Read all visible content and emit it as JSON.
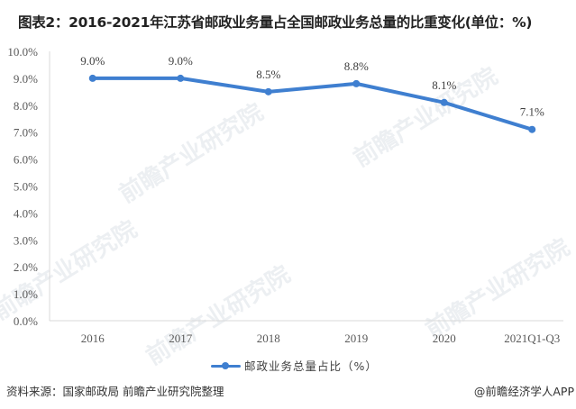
{
  "title": "图表2：2016-2021年江苏省邮政业务量占全国邮政业务总量的比重变化(单位：%)",
  "chart_data": {
    "type": "line",
    "title": "图表2：2016-2021年江苏省邮政业务量占全国邮政业务总量的比重变化(单位：%)",
    "xlabel": "",
    "ylabel": "",
    "categories": [
      "2016",
      "2017",
      "2018",
      "2019",
      "2020",
      "2021Q1-Q3"
    ],
    "series": [
      {
        "name": "邮政业务总量占比（%）",
        "values": [
          9.0,
          9.0,
          8.5,
          8.8,
          8.1,
          7.1
        ],
        "data_labels": [
          "9.0%",
          "9.0%",
          "8.5%",
          "8.8%",
          "8.1%",
          "7.1%"
        ],
        "color": "#3f7fd0"
      }
    ],
    "ylim": [
      0,
      10
    ],
    "yticks": [
      "0.0%",
      "1.0%",
      "2.0%",
      "3.0%",
      "4.0%",
      "5.0%",
      "6.0%",
      "7.0%",
      "8.0%",
      "9.0%",
      "10.0%"
    ],
    "grid": false,
    "legend_position": "bottom"
  },
  "legend": {
    "label": "邮政业务总量占比（%）"
  },
  "footer": {
    "source": "资料来源：国家邮政局 前瞻产业研究院整理",
    "brand": "@前瞻经济学人APP"
  },
  "watermark": {
    "text": "前瞻产业研究院"
  },
  "colors": {
    "line": "#3f7fd0",
    "axis": "#d9d9d9",
    "text": "#595959"
  }
}
